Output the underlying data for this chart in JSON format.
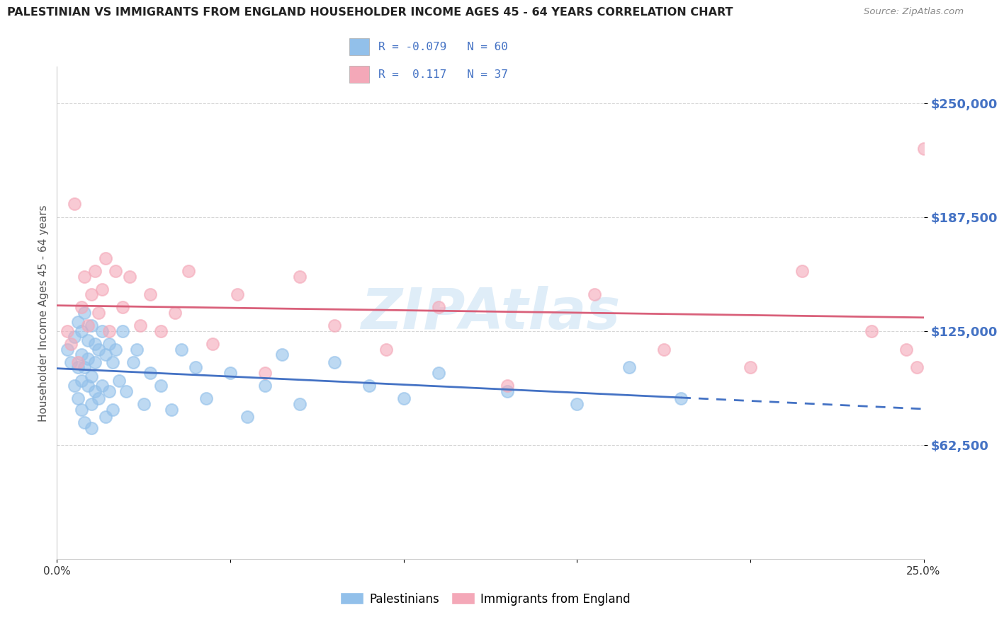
{
  "title": "PALESTINIAN VS IMMIGRANTS FROM ENGLAND HOUSEHOLDER INCOME AGES 45 - 64 YEARS CORRELATION CHART",
  "source": "Source: ZipAtlas.com",
  "ylabel": "Householder Income Ages 45 - 64 years",
  "xlim": [
    0.0,
    0.25
  ],
  "ylim": [
    0,
    270000
  ],
  "xticks": [
    0.0,
    0.05,
    0.1,
    0.15,
    0.2,
    0.25
  ],
  "xticklabels": [
    "0.0%",
    "",
    "",
    "",
    "",
    "25.0%"
  ],
  "yticks": [
    62500,
    125000,
    187500,
    250000
  ],
  "yticklabels": [
    "$62,500",
    "$125,000",
    "$187,500",
    "$250,000"
  ],
  "blue_R": -0.079,
  "blue_N": 60,
  "pink_R": 0.117,
  "pink_N": 37,
  "blue_color": "#92c0ea",
  "pink_color": "#f4a8b8",
  "blue_line_color": "#4472c4",
  "pink_line_color": "#d9607a",
  "legend_label_blue": "Palestinians",
  "legend_label_pink": "Immigrants from England",
  "blue_points_x": [
    0.003,
    0.004,
    0.005,
    0.005,
    0.006,
    0.006,
    0.006,
    0.007,
    0.007,
    0.007,
    0.007,
    0.008,
    0.008,
    0.008,
    0.009,
    0.009,
    0.009,
    0.01,
    0.01,
    0.01,
    0.01,
    0.011,
    0.011,
    0.011,
    0.012,
    0.012,
    0.013,
    0.013,
    0.014,
    0.014,
    0.015,
    0.015,
    0.016,
    0.016,
    0.017,
    0.018,
    0.019,
    0.02,
    0.022,
    0.023,
    0.025,
    0.027,
    0.03,
    0.033,
    0.036,
    0.04,
    0.043,
    0.05,
    0.055,
    0.06,
    0.065,
    0.07,
    0.08,
    0.09,
    0.1,
    0.11,
    0.13,
    0.15,
    0.165,
    0.18
  ],
  "blue_points_y": [
    115000,
    108000,
    122000,
    95000,
    130000,
    105000,
    88000,
    125000,
    112000,
    98000,
    82000,
    135000,
    105000,
    75000,
    120000,
    95000,
    110000,
    128000,
    100000,
    85000,
    72000,
    118000,
    92000,
    108000,
    115000,
    88000,
    125000,
    95000,
    112000,
    78000,
    118000,
    92000,
    108000,
    82000,
    115000,
    98000,
    125000,
    92000,
    108000,
    115000,
    85000,
    102000,
    95000,
    82000,
    115000,
    105000,
    88000,
    102000,
    78000,
    95000,
    112000,
    85000,
    108000,
    95000,
    88000,
    102000,
    92000,
    85000,
    105000,
    88000
  ],
  "pink_points_x": [
    0.003,
    0.004,
    0.005,
    0.006,
    0.007,
    0.008,
    0.009,
    0.01,
    0.011,
    0.012,
    0.013,
    0.014,
    0.015,
    0.017,
    0.019,
    0.021,
    0.024,
    0.027,
    0.03,
    0.034,
    0.038,
    0.045,
    0.052,
    0.06,
    0.07,
    0.08,
    0.095,
    0.11,
    0.13,
    0.155,
    0.175,
    0.2,
    0.215,
    0.235,
    0.245,
    0.248,
    0.25
  ],
  "pink_points_y": [
    125000,
    118000,
    195000,
    108000,
    138000,
    155000,
    128000,
    145000,
    158000,
    135000,
    148000,
    165000,
    125000,
    158000,
    138000,
    155000,
    128000,
    145000,
    125000,
    135000,
    158000,
    118000,
    145000,
    102000,
    155000,
    128000,
    115000,
    138000,
    95000,
    145000,
    115000,
    105000,
    158000,
    125000,
    115000,
    105000,
    225000
  ]
}
